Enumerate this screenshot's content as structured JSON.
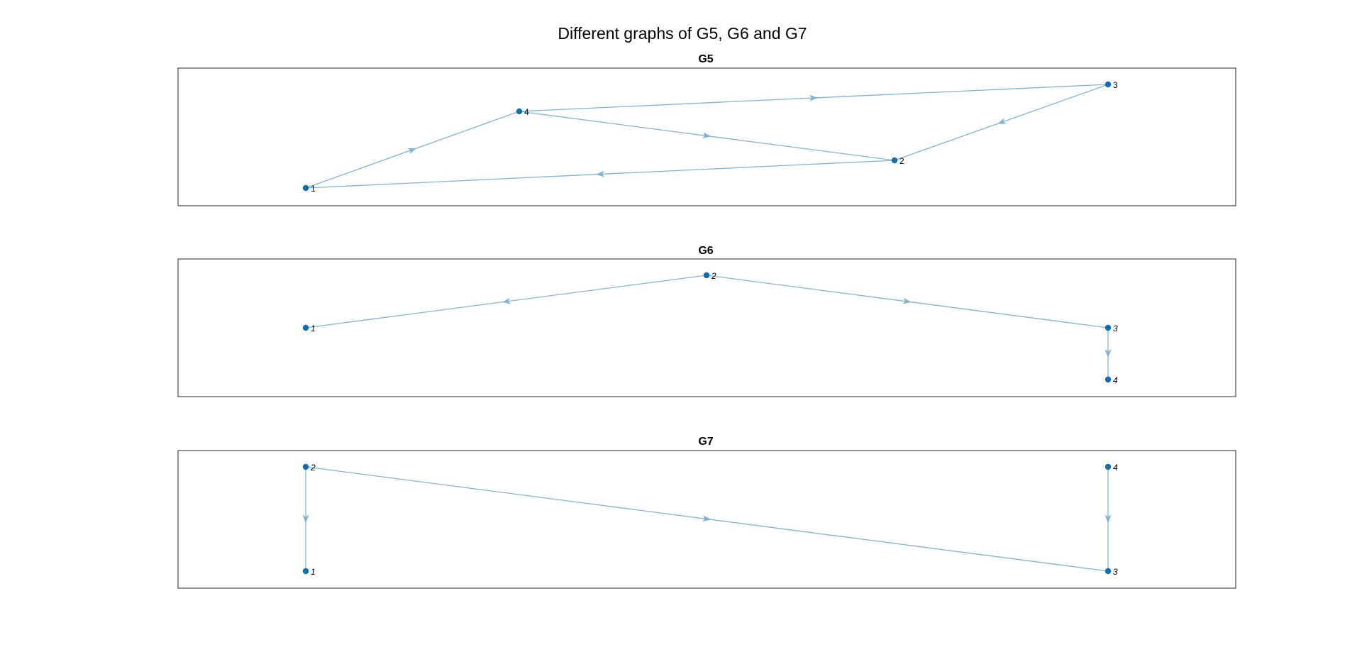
{
  "figure": {
    "title": "Different graphs of G5, G6 and G7"
  },
  "colors": {
    "node": "#0b6fb8",
    "edge": "#80b3d9",
    "frame": "#262626"
  },
  "panels": [
    {
      "key": "g5",
      "title": "G5",
      "label_style": "normal",
      "nodes": [
        {
          "id": "1",
          "label": "1"
        },
        {
          "id": "2",
          "label": "2"
        },
        {
          "id": "3",
          "label": "3"
        },
        {
          "id": "4",
          "label": "4"
        }
      ],
      "edges": [
        {
          "from": "1",
          "to": "4"
        },
        {
          "from": "4",
          "to": "3"
        },
        {
          "from": "4",
          "to": "2"
        },
        {
          "from": "3",
          "to": "2"
        },
        {
          "from": "2",
          "to": "1"
        }
      ]
    },
    {
      "key": "g6",
      "title": "G6",
      "label_style": "italic",
      "nodes": [
        {
          "id": "1",
          "label": "1"
        },
        {
          "id": "2",
          "label": "2"
        },
        {
          "id": "3",
          "label": "3"
        },
        {
          "id": "4",
          "label": "4"
        }
      ],
      "edges": [
        {
          "from": "2",
          "to": "1"
        },
        {
          "from": "2",
          "to": "3"
        },
        {
          "from": "3",
          "to": "4"
        }
      ]
    },
    {
      "key": "g7",
      "title": "G7",
      "label_style": "italic",
      "nodes": [
        {
          "id": "1",
          "label": "1"
        },
        {
          "id": "2",
          "label": "2"
        },
        {
          "id": "3",
          "label": "3"
        },
        {
          "id": "4",
          "label": "4"
        }
      ],
      "edges": [
        {
          "from": "2",
          "to": "1"
        },
        {
          "from": "2",
          "to": "3"
        },
        {
          "from": "4",
          "to": "3"
        }
      ]
    }
  ]
}
